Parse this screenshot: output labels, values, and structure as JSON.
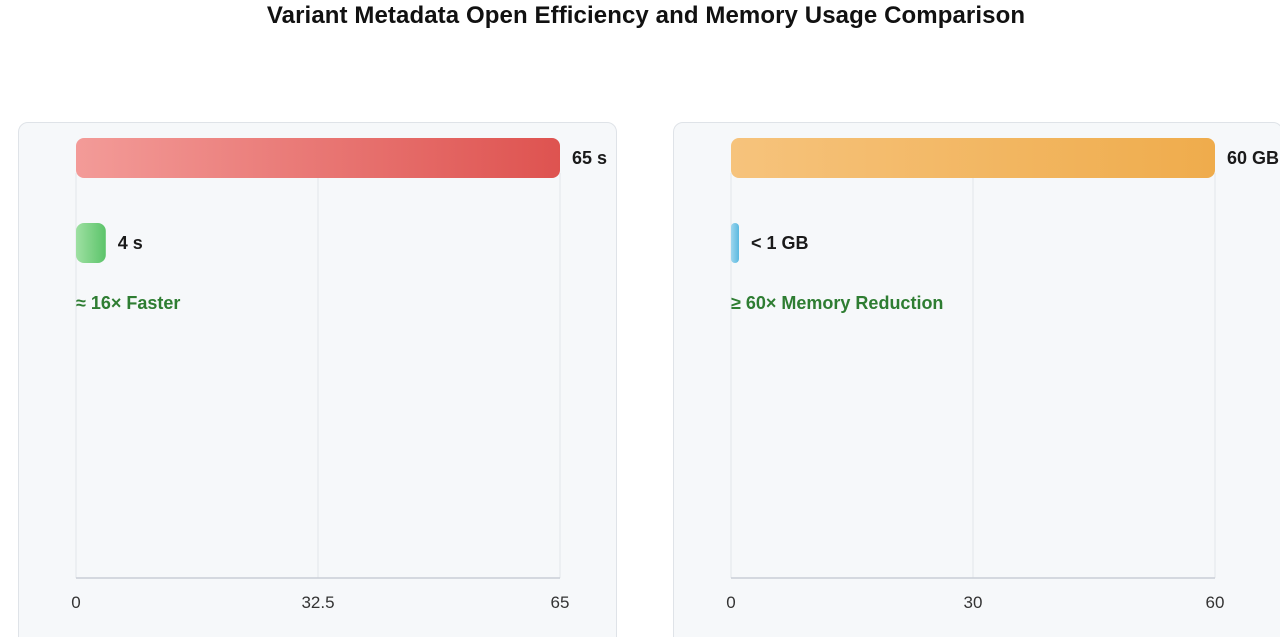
{
  "title": "Variant Metadata Open Efficiency and Memory Usage Comparison",
  "colors": {
    "time_before_start": "#f39b98",
    "time_before_end": "#de5350",
    "time_after_start": "#9ee0a2",
    "time_after_end": "#5cc46a",
    "mem_before_start": "#f6c37c",
    "mem_before_end": "#efac4c",
    "mem_after_start": "#9dd6ee",
    "mem_after_end": "#5bb9e0",
    "annotation": "#2e7d32",
    "axis": "#c9ced6",
    "grid": "#e3e6ea"
  },
  "chart_data": [
    {
      "type": "bar",
      "orientation": "horizontal",
      "name": "open-time",
      "xlim": [
        0,
        65
      ],
      "ticks": [
        0,
        32.5,
        65
      ],
      "tick_labels": [
        "0",
        "32.5",
        "65"
      ],
      "bars": [
        {
          "value": 65,
          "label": "65 s",
          "style": "time_before"
        },
        {
          "value": 4,
          "label": "4 s",
          "style": "time_after"
        }
      ],
      "annotation": "≈ 16× Faster"
    },
    {
      "type": "bar",
      "orientation": "horizontal",
      "name": "memory",
      "xlim": [
        0,
        60
      ],
      "ticks": [
        0,
        30,
        60
      ],
      "tick_labels": [
        "0",
        "30",
        "60"
      ],
      "bars": [
        {
          "value": 60,
          "label": "60 GB",
          "style": "mem_before"
        },
        {
          "value": 0.55,
          "label": "< 1 GB",
          "style": "mem_after"
        }
      ],
      "annotation": "≥ 60× Memory Reduction"
    }
  ]
}
